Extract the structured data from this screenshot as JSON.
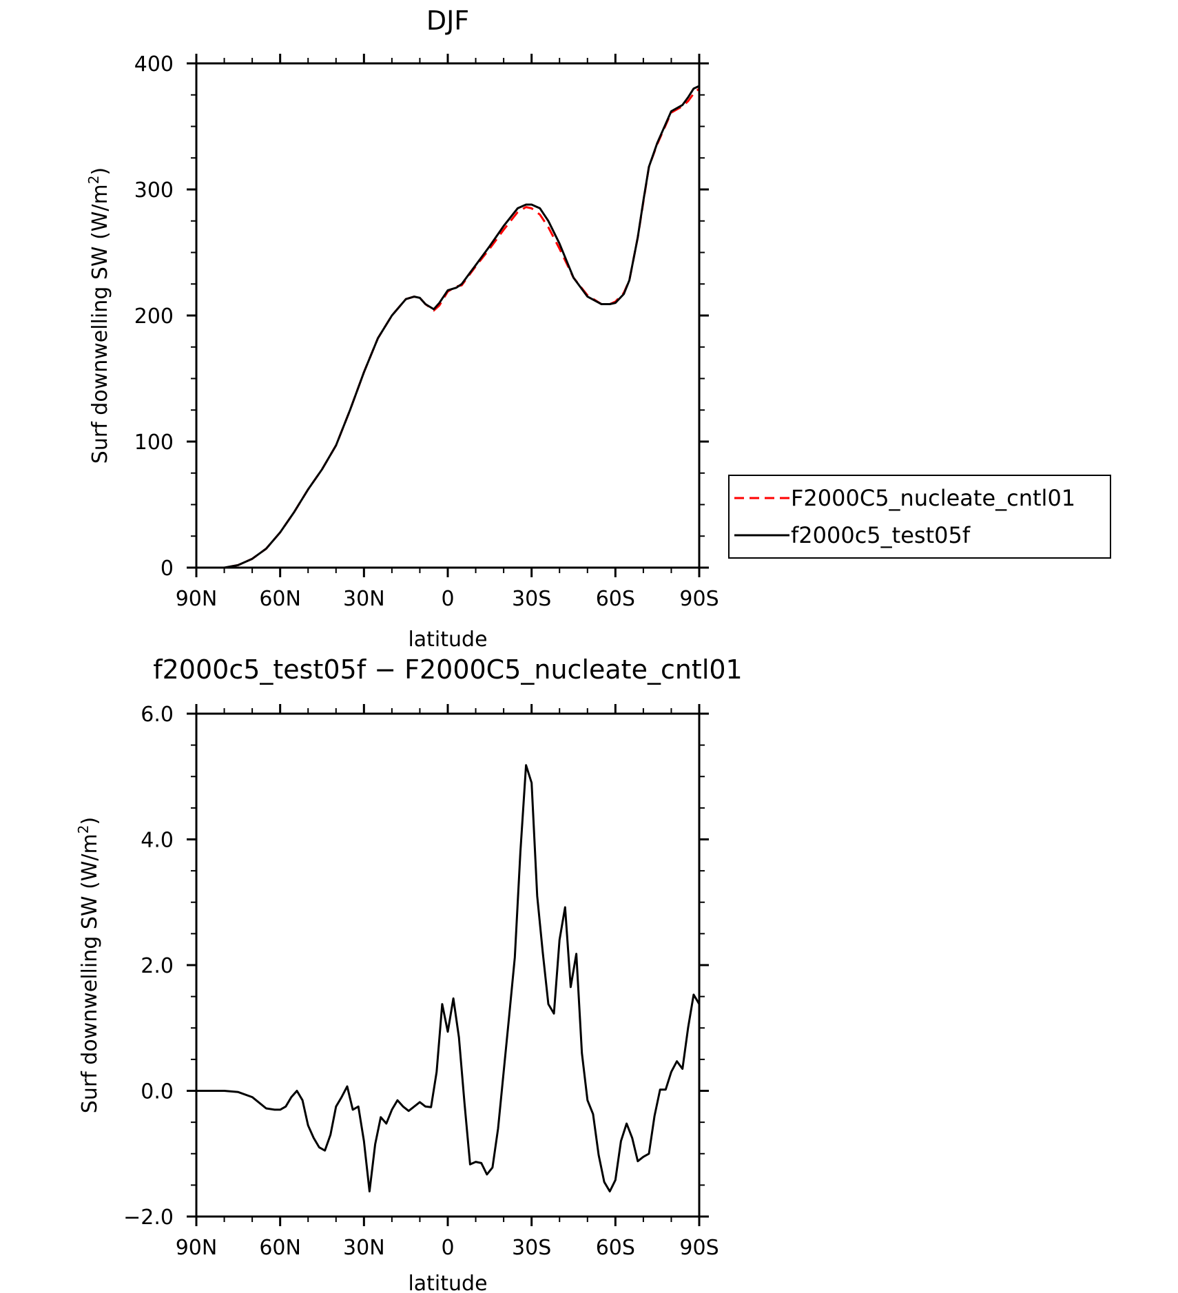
{
  "chart_data": [
    {
      "type": "line",
      "title": "DJF",
      "xlabel": "latitude",
      "ylabel": "Surf downwelling SW (W/m²)",
      "xlim": [
        90,
        -90
      ],
      "ylim": [
        0,
        400
      ],
      "x_ticks": [
        {
          "value": 90,
          "label": "90N"
        },
        {
          "value": 60,
          "label": "60N"
        },
        {
          "value": 30,
          "label": "30N"
        },
        {
          "value": 0,
          "label": "0"
        },
        {
          "value": -30,
          "label": "30S"
        },
        {
          "value": -60,
          "label": "60S"
        },
        {
          "value": -90,
          "label": "90S"
        }
      ],
      "y_ticks": [
        {
          "value": 0,
          "label": "0"
        },
        {
          "value": 100,
          "label": "100"
        },
        {
          "value": 200,
          "label": "200"
        },
        {
          "value": 300,
          "label": "300"
        },
        {
          "value": 400,
          "label": "400"
        }
      ],
      "legend_position": "right",
      "x": [
        90,
        80,
        75,
        70,
        65,
        60,
        55,
        50,
        45,
        40,
        35,
        30,
        25,
        20,
        15,
        12,
        10,
        8,
        5,
        3,
        0,
        -3,
        -5,
        -8,
        -10,
        -15,
        -20,
        -25,
        -28,
        -30,
        -33,
        -36,
        -40,
        -45,
        -50,
        -55,
        -58,
        -60,
        -63,
        -65,
        -68,
        -70,
        -72,
        -75,
        -80,
        -84,
        -86,
        -88,
        -90
      ],
      "series": [
        {
          "name": "F2000C5_nucleate_cntl01",
          "color": "#ff0000",
          "dash": "dashed",
          "values": [
            0,
            0,
            2,
            7,
            15,
            28,
            44,
            62,
            78,
            97,
            125,
            155,
            182,
            200,
            213,
            215,
            214,
            209,
            204,
            208,
            219,
            223,
            224,
            233,
            239,
            253,
            268,
            282,
            286,
            285,
            280,
            270,
            253,
            230,
            216,
            209,
            209,
            211,
            218,
            228,
            262,
            290,
            318,
            336,
            361,
            366,
            370,
            376,
            380
          ]
        },
        {
          "name": "f2000c5_test05f",
          "color": "#000000",
          "dash": "solid",
          "values": [
            0,
            0,
            2,
            7,
            15,
            28,
            44,
            62,
            78,
            97,
            125,
            155,
            182,
            200,
            213,
            215,
            214,
            209,
            205,
            210,
            220,
            222,
            225,
            234,
            240,
            255,
            271,
            285,
            288,
            288,
            285,
            275,
            257,
            230,
            215,
            209,
            209,
            210,
            217,
            228,
            262,
            291,
            318,
            337,
            362,
            367,
            373,
            380,
            382
          ]
        }
      ]
    },
    {
      "type": "line",
      "title": "f2000c5_test05f − F2000C5_nucleate_cntl01",
      "xlabel": "latitude",
      "ylabel": "Surf downwelling SW (W/m²)",
      "xlim": [
        90,
        -90
      ],
      "ylim": [
        -2.0,
        6.0
      ],
      "x_ticks": [
        {
          "value": 90,
          "label": "90N"
        },
        {
          "value": 60,
          "label": "60N"
        },
        {
          "value": 30,
          "label": "30N"
        },
        {
          "value": 0,
          "label": "0"
        },
        {
          "value": -30,
          "label": "30S"
        },
        {
          "value": -60,
          "label": "60S"
        },
        {
          "value": -90,
          "label": "90S"
        }
      ],
      "y_ticks": [
        {
          "value": -2.0,
          "label": "−2.0"
        },
        {
          "value": 0.0,
          "label": "0.0"
        },
        {
          "value": 2.0,
          "label": "2.0"
        },
        {
          "value": 4.0,
          "label": "4.0"
        },
        {
          "value": 6.0,
          "label": "6.0"
        }
      ],
      "x": [
        90,
        85,
        80,
        75,
        70,
        65,
        62,
        60,
        58,
        56,
        54,
        52,
        50,
        48,
        46,
        44,
        42,
        40,
        38,
        36,
        34,
        32,
        30,
        28,
        26,
        24,
        22,
        20,
        18,
        16,
        14,
        12,
        10,
        8,
        6,
        4,
        2,
        0,
        -2,
        -4,
        -6,
        -8,
        -10,
        -12,
        -14,
        -16,
        -18,
        -20,
        -22,
        -24,
        -26,
        -28,
        -30,
        -32,
        -34,
        -36,
        -38,
        -40,
        -42,
        -44,
        -46,
        -48,
        -50,
        -52,
        -54,
        -56,
        -58,
        -60,
        -62,
        -64,
        -66,
        -68,
        -70,
        -72,
        -74,
        -76,
        -78,
        -80,
        -82,
        -84,
        -86,
        -88,
        -90
      ],
      "series": [
        {
          "color": "#000000",
          "dash": "solid",
          "values": [
            0.0,
            0.0,
            0.0,
            -0.02,
            -0.1,
            -0.28,
            -0.3,
            -0.3,
            -0.25,
            -0.1,
            0.0,
            -0.15,
            -0.55,
            -0.75,
            -0.9,
            -0.95,
            -0.7,
            -0.25,
            -0.1,
            0.07,
            -0.3,
            -0.25,
            -0.8,
            -1.6,
            -0.85,
            -0.42,
            -0.52,
            -0.3,
            -0.15,
            -0.25,
            -0.32,
            -0.25,
            -0.18,
            -0.25,
            -0.26,
            0.3,
            1.38,
            0.94,
            1.47,
            0.85,
            -0.2,
            -1.17,
            -1.13,
            -1.15,
            -1.33,
            -1.22,
            -0.6,
            0.3,
            1.2,
            2.12,
            3.8,
            5.18,
            4.9,
            3.1,
            2.2,
            1.38,
            1.23,
            2.4,
            2.92,
            1.65,
            2.18,
            0.6,
            -0.15,
            -0.37,
            -1.02,
            -1.45,
            -1.6,
            -1.42,
            -0.8,
            -0.52,
            -0.75,
            -1.12,
            -1.05,
            -1.0,
            -0.4,
            0.02,
            0.02,
            0.3,
            0.47,
            0.35,
            1.0,
            1.53,
            1.38
          ]
        }
      ]
    }
  ],
  "legend": [
    {
      "label": "F2000C5_nucleate_cntl01"
    },
    {
      "label": "f2000c5_test05f"
    }
  ]
}
